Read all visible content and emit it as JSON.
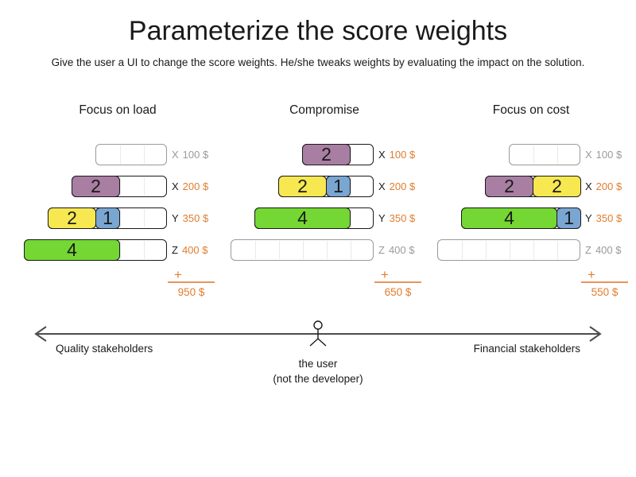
{
  "title": "Parameterize the score weights",
  "subtitle": "Give the user a UI to change the score weights. He/she tweaks weights by evaluating the impact on the solution.",
  "plus_sign": "+",
  "colors": {
    "purple": "#a87ea3",
    "yellow": "#f7e852",
    "blue": "#7aa6d2",
    "green": "#74d733",
    "orange": "#e07d2e",
    "inactive_gray": "#9a9a9a",
    "ink": "#1a1a1a",
    "axis_gray": "#4d4d4d"
  },
  "scenarios": [
    {
      "title": "Focus on load",
      "total": "950 $",
      "rows": [
        {
          "letter": "X",
          "price": "100 $",
          "active": false,
          "units": 3,
          "blocks": []
        },
        {
          "letter": "X",
          "price": "200 $",
          "active": true,
          "units": 4,
          "blocks": [
            {
              "value": "2",
              "units": 2,
              "color": "purple"
            }
          ]
        },
        {
          "letter": "Y",
          "price": "350 $",
          "active": true,
          "units": 5,
          "blocks": [
            {
              "value": "2",
              "units": 2,
              "color": "yellow"
            },
            {
              "value": "1",
              "units": 1,
              "color": "blue"
            }
          ]
        },
        {
          "letter": "Z",
          "price": "400 $",
          "active": true,
          "units": 6,
          "blocks": [
            {
              "value": "4",
              "units": 4,
              "color": "green"
            }
          ]
        }
      ]
    },
    {
      "title": "Compromise",
      "total": "650 $",
      "rows": [
        {
          "letter": "X",
          "price": "100 $",
          "active": true,
          "units": 3,
          "blocks": [
            {
              "value": "2",
              "units": 2,
              "color": "purple"
            }
          ]
        },
        {
          "letter": "X",
          "price": "200 $",
          "active": true,
          "units": 4,
          "blocks": [
            {
              "value": "2",
              "units": 2,
              "color": "yellow"
            },
            {
              "value": "1",
              "units": 1,
              "color": "blue"
            }
          ]
        },
        {
          "letter": "Y",
          "price": "350 $",
          "active": true,
          "units": 5,
          "blocks": [
            {
              "value": "4",
              "units": 4,
              "color": "green"
            }
          ]
        },
        {
          "letter": "Z",
          "price": "400 $",
          "active": false,
          "units": 6,
          "blocks": []
        }
      ]
    },
    {
      "title": "Focus on cost",
      "total": "550 $",
      "rows": [
        {
          "letter": "X",
          "price": "100 $",
          "active": false,
          "units": 3,
          "blocks": []
        },
        {
          "letter": "X",
          "price": "200 $",
          "active": true,
          "units": 4,
          "blocks": [
            {
              "value": "2",
              "units": 2,
              "color": "purple"
            },
            {
              "value": "2",
              "units": 2,
              "color": "yellow"
            }
          ]
        },
        {
          "letter": "Y",
          "price": "350 $",
          "active": true,
          "units": 5,
          "blocks": [
            {
              "value": "4",
              "units": 4,
              "color": "green"
            },
            {
              "value": "1",
              "units": 1,
              "color": "blue"
            }
          ]
        },
        {
          "letter": "Z",
          "price": "400 $",
          "active": false,
          "units": 6,
          "blocks": []
        }
      ]
    }
  ],
  "axis": {
    "left_label": "Quality stakeholders",
    "right_label": "Financial stakeholders",
    "figure_caption_line1": "the user",
    "figure_caption_line2": "(not the developer)"
  }
}
